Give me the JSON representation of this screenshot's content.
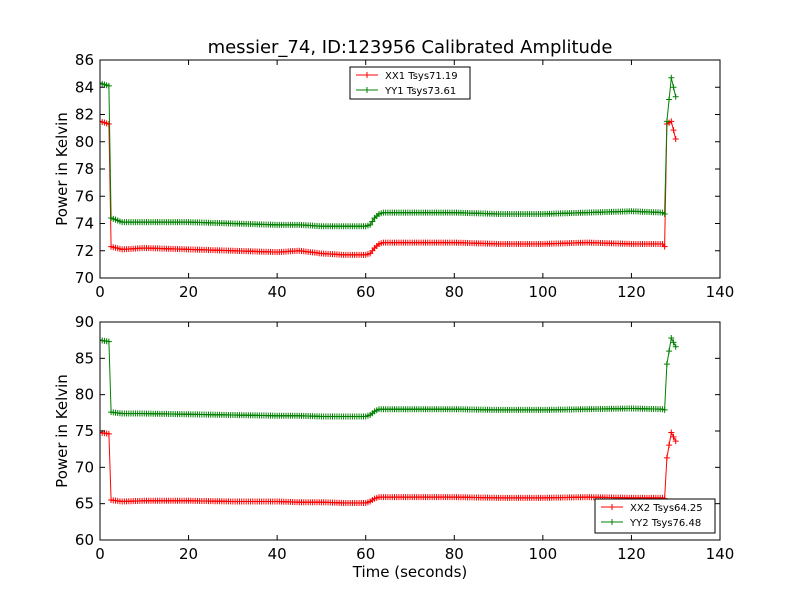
{
  "title": "messier_74, ID:123956 Calibrated Amplitude",
  "colors": {
    "xx": "#ff0000",
    "yy": "#008000"
  },
  "chart_data": [
    {
      "type": "line",
      "title": "messier_74, ID:123956 Calibrated Amplitude",
      "xlabel": "",
      "ylabel": "Power in Kelvin",
      "xlim": [
        0,
        140
      ],
      "ylim": [
        70,
        86
      ],
      "xticks": [
        "0",
        "20",
        "40",
        "60",
        "80",
        "100",
        "120",
        "140"
      ],
      "yticks": [
        "70",
        "72",
        "74",
        "76",
        "78",
        "80",
        "82",
        "84",
        "86"
      ],
      "legend_position": "top-center",
      "grid": false,
      "series": [
        {
          "name": "XX1 Tsys71.19",
          "color": "#ff0000",
          "x": [
            0,
            1,
            2,
            2.5,
            5,
            10,
            20,
            30,
            40,
            45,
            50,
            55,
            60,
            61,
            62,
            63,
            64,
            70,
            80,
            90,
            100,
            110,
            120,
            127,
            127.5,
            128,
            129,
            130
          ],
          "y": [
            81.5,
            81.4,
            81.3,
            72.3,
            72.1,
            72.2,
            72.1,
            72.0,
            71.9,
            72.0,
            71.8,
            71.7,
            71.7,
            71.8,
            72.2,
            72.5,
            72.6,
            72.6,
            72.6,
            72.5,
            72.5,
            72.6,
            72.5,
            72.5,
            72.3,
            81.3,
            81.5,
            80.2
          ]
        },
        {
          "name": "YY1 Tsys73.61",
          "color": "#008000",
          "x": [
            0,
            1,
            2,
            2.5,
            5,
            10,
            20,
            30,
            40,
            45,
            50,
            55,
            60,
            61,
            62,
            63,
            64,
            70,
            80,
            90,
            100,
            110,
            120,
            127,
            127.5,
            128,
            129,
            130
          ],
          "y": [
            84.3,
            84.2,
            84.1,
            74.4,
            74.1,
            74.1,
            74.1,
            74.0,
            73.9,
            73.9,
            73.8,
            73.8,
            73.8,
            73.9,
            74.4,
            74.7,
            74.8,
            74.8,
            74.8,
            74.7,
            74.7,
            74.8,
            74.9,
            74.8,
            74.7,
            81.5,
            84.7,
            83.3
          ]
        }
      ]
    },
    {
      "type": "line",
      "title": "",
      "xlabel": "Time (seconds)",
      "ylabel": "Power in Kelvin",
      "xlim": [
        0,
        140
      ],
      "ylim": [
        60,
        90
      ],
      "xticks": [
        "0",
        "20",
        "40",
        "60",
        "80",
        "100",
        "120",
        "140"
      ],
      "yticks": [
        "60",
        "65",
        "70",
        "75",
        "80",
        "85",
        "90"
      ],
      "legend_position": "bottom-right",
      "grid": false,
      "series": [
        {
          "name": "XX2 Tsys64.25",
          "color": "#ff0000",
          "x": [
            0,
            1,
            2,
            2.5,
            5,
            10,
            20,
            30,
            40,
            45,
            50,
            55,
            60,
            61,
            62,
            63,
            64,
            70,
            80,
            90,
            100,
            110,
            120,
            127,
            127.5,
            128,
            129,
            130
          ],
          "y": [
            74.8,
            74.7,
            74.6,
            65.5,
            65.3,
            65.4,
            65.4,
            65.3,
            65.3,
            65.2,
            65.2,
            65.1,
            65.1,
            65.3,
            65.7,
            65.9,
            65.9,
            65.9,
            65.9,
            65.8,
            65.8,
            65.9,
            65.8,
            65.8,
            65.7,
            71.3,
            74.8,
            73.6
          ]
        },
        {
          "name": "YY2 Tsys76.48",
          "color": "#008000",
          "x": [
            0,
            1,
            2,
            2.5,
            5,
            10,
            20,
            30,
            40,
            45,
            50,
            55,
            60,
            61,
            62,
            63,
            64,
            70,
            80,
            90,
            100,
            110,
            120,
            127,
            127.5,
            128,
            129,
            130
          ],
          "y": [
            87.5,
            87.4,
            87.3,
            77.6,
            77.4,
            77.4,
            77.3,
            77.2,
            77.1,
            77.1,
            77.0,
            77.0,
            77.0,
            77.2,
            77.7,
            78.0,
            78.0,
            78.0,
            78.0,
            77.9,
            77.9,
            78.0,
            78.1,
            78.0,
            77.9,
            84.2,
            87.8,
            86.6
          ]
        }
      ]
    }
  ]
}
